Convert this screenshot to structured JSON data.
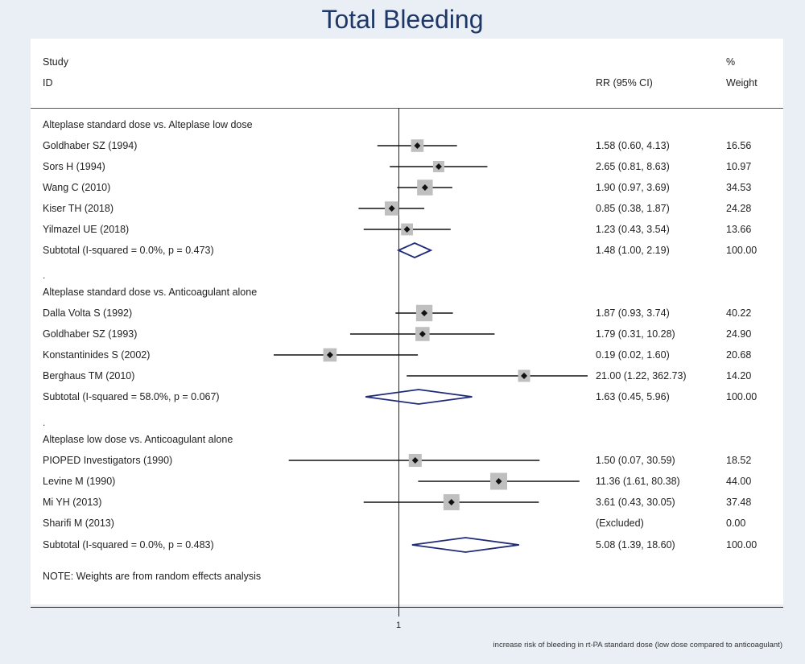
{
  "title": "Total Bleeding",
  "header": {
    "study": "Study",
    "id": "ID",
    "rr": "RR (95% CI)",
    "pct": "%",
    "weight": "Weight"
  },
  "axis": {
    "tick": "1"
  },
  "footnote": "increase risk of bleeding in rt-PA standard dose (low dose compared to anticoagulant)",
  "note": "NOTE: Weights are from random effects analysis",
  "colors": {
    "title": "#1f3766",
    "diamond": "#1f2a78",
    "box": "#bfbfbf"
  },
  "chart_data": {
    "type": "forest",
    "measure": "RR",
    "null_value": 1,
    "scale": "log",
    "groups": [
      {
        "label": "Alteplase standard dose vs. Alteplase low dose",
        "studies": [
          {
            "study": "Goldhaber SZ (1994)",
            "rr": 1.58,
            "lo": 0.6,
            "hi": 4.13,
            "text": "1.58 (0.60, 4.13)",
            "weight": 16.56,
            "weight_text": "16.56"
          },
          {
            "study": "Sors H (1994)",
            "rr": 2.65,
            "lo": 0.81,
            "hi": 8.63,
            "text": "2.65 (0.81, 8.63)",
            "weight": 10.97,
            "weight_text": "10.97"
          },
          {
            "study": "Wang C (2010)",
            "rr": 1.9,
            "lo": 0.97,
            "hi": 3.69,
            "text": "1.90 (0.97, 3.69)",
            "weight": 34.53,
            "weight_text": "34.53"
          },
          {
            "study": "Kiser TH (2018)",
            "rr": 0.85,
            "lo": 0.38,
            "hi": 1.87,
            "text": "0.85 (0.38, 1.87)",
            "weight": 24.28,
            "weight_text": "24.28"
          },
          {
            "study": "Yilmazel UE (2018)",
            "rr": 1.23,
            "lo": 0.43,
            "hi": 3.54,
            "text": "1.23 (0.43, 3.54)",
            "weight": 13.66,
            "weight_text": "13.66"
          }
        ],
        "subtotal": {
          "label": "Subtotal  (I-squared = 0.0%, p = 0.473)",
          "rr": 1.48,
          "lo": 1.0,
          "hi": 2.19,
          "text": "1.48 (1.00, 2.19)",
          "weight_text": "100.00"
        }
      },
      {
        "label": "Alteplase standard dose vs. Anticoagulant alone",
        "studies": [
          {
            "study": "Dalla Volta S (1992)",
            "rr": 1.87,
            "lo": 0.93,
            "hi": 3.74,
            "text": "1.87 (0.93, 3.74)",
            "weight": 40.22,
            "weight_text": "40.22"
          },
          {
            "study": "Goldhaber SZ (1993)",
            "rr": 1.79,
            "lo": 0.31,
            "hi": 10.28,
            "text": "1.79 (0.31, 10.28)",
            "weight": 24.9,
            "weight_text": "24.90"
          },
          {
            "study": "Konstantinides S (2002)",
            "rr": 0.19,
            "lo": 0.02,
            "hi": 1.6,
            "text": "0.19 (0.02, 1.60)",
            "weight": 20.68,
            "weight_text": "20.68"
          },
          {
            "study": "Berghaus TM (2010)",
            "rr": 21.0,
            "lo": 1.22,
            "hi": 362.73,
            "text": "21.00 (1.22, 362.73)",
            "weight": 14.2,
            "weight_text": "14.20"
          }
        ],
        "subtotal": {
          "label": "Subtotal  (I-squared = 58.0%, p = 0.067)",
          "rr": 1.63,
          "lo": 0.45,
          "hi": 5.96,
          "text": "1.63 (0.45, 5.96)",
          "weight_text": "100.00"
        }
      },
      {
        "label": "Alteplase low dose vs. Anticoagulant alone",
        "studies": [
          {
            "study": "PIOPED Investigators (1990)",
            "rr": 1.5,
            "lo": 0.07,
            "hi": 30.59,
            "text": "1.50 (0.07, 30.59)",
            "weight": 18.52,
            "weight_text": "18.52"
          },
          {
            "study": "Levine M (1990)",
            "rr": 11.36,
            "lo": 1.61,
            "hi": 80.38,
            "text": "11.36 (1.61, 80.38)",
            "weight": 44.0,
            "weight_text": "44.00"
          },
          {
            "study": "Mi YH (2013)",
            "rr": 3.61,
            "lo": 0.43,
            "hi": 30.05,
            "text": "3.61 (0.43, 30.05)",
            "weight": 37.48,
            "weight_text": "37.48"
          },
          {
            "study": "Sharifi M (2013)",
            "rr": null,
            "lo": null,
            "hi": null,
            "text": "(Excluded)",
            "weight": 0,
            "weight_text": "0.00"
          }
        ],
        "subtotal": {
          "label": "Subtotal  (I-squared = 0.0%, p = 0.483)",
          "rr": 5.08,
          "lo": 1.39,
          "hi": 18.6,
          "text": "5.08 (1.39, 18.60)",
          "weight_text": "100.00"
        }
      }
    ]
  }
}
